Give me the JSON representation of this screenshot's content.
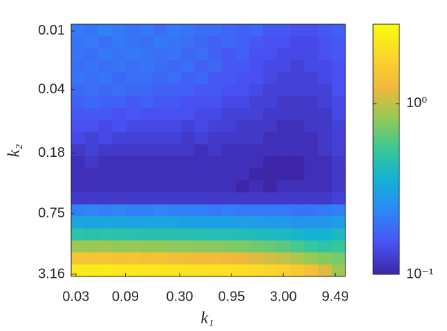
{
  "chart_data": {
    "type": "heatmap",
    "xlabel": "k₁",
    "ylabel": "k₂",
    "xscale": "log",
    "yscale": "log",
    "colorscale": "log",
    "colormap": "parula",
    "xlim": [
      0.027,
      11.9
    ],
    "ylim": [
      0.0085,
      3.32
    ],
    "xticks": [
      0.03,
      0.09,
      {
        "value": 0.3,
        "label": "0.30"
      },
      0.95,
      {
        "value": 3,
        "label": "3.00"
      },
      9.49
    ],
    "yticks": [
      0.01,
      0.04,
      0.18,
      0.75,
      3.16
    ],
    "clim": [
      0.1,
      2.92
    ],
    "cticks": [
      {
        "value": 0.1,
        "label": "10⁻¹"
      },
      {
        "value": 1,
        "label": "10⁰"
      }
    ],
    "z": [
      [
        0.21,
        0.2,
        0.22,
        0.21,
        0.2,
        0.21,
        0.19,
        0.21,
        0.2,
        0.19,
        0.19,
        0.18,
        0.17,
        0.18,
        0.16,
        0.16,
        0.15,
        0.15,
        0.16,
        0.17
      ],
      [
        0.2,
        0.21,
        0.19,
        0.21,
        0.2,
        0.19,
        0.21,
        0.2,
        0.19,
        0.18,
        0.17,
        0.18,
        0.17,
        0.16,
        0.15,
        0.15,
        0.14,
        0.14,
        0.15,
        0.16
      ],
      [
        0.2,
        0.19,
        0.21,
        0.2,
        0.21,
        0.2,
        0.19,
        0.2,
        0.18,
        0.19,
        0.17,
        0.16,
        0.17,
        0.15,
        0.15,
        0.14,
        0.14,
        0.14,
        0.15,
        0.16
      ],
      [
        0.19,
        0.2,
        0.19,
        0.2,
        0.19,
        0.2,
        0.19,
        0.18,
        0.19,
        0.17,
        0.18,
        0.16,
        0.16,
        0.15,
        0.14,
        0.14,
        0.13,
        0.14,
        0.14,
        0.15
      ],
      [
        0.2,
        0.19,
        0.2,
        0.18,
        0.19,
        0.19,
        0.18,
        0.19,
        0.17,
        0.18,
        0.16,
        0.16,
        0.15,
        0.15,
        0.14,
        0.13,
        0.13,
        0.13,
        0.14,
        0.15
      ],
      [
        0.18,
        0.19,
        0.18,
        0.19,
        0.18,
        0.18,
        0.17,
        0.17,
        0.17,
        0.16,
        0.16,
        0.15,
        0.15,
        0.14,
        0.13,
        0.13,
        0.13,
        0.13,
        0.13,
        0.15
      ],
      [
        0.17,
        0.18,
        0.17,
        0.17,
        0.16,
        0.17,
        0.16,
        0.16,
        0.15,
        0.15,
        0.15,
        0.14,
        0.14,
        0.13,
        0.13,
        0.12,
        0.12,
        0.12,
        0.13,
        0.14
      ],
      [
        0.16,
        0.16,
        0.16,
        0.15,
        0.16,
        0.15,
        0.15,
        0.15,
        0.15,
        0.14,
        0.14,
        0.13,
        0.13,
        0.13,
        0.12,
        0.12,
        0.12,
        0.12,
        0.12,
        0.14
      ],
      [
        0.15,
        0.15,
        0.14,
        0.15,
        0.14,
        0.14,
        0.14,
        0.14,
        0.13,
        0.14,
        0.13,
        0.13,
        0.12,
        0.12,
        0.12,
        0.11,
        0.11,
        0.12,
        0.12,
        0.13
      ],
      [
        0.14,
        0.13,
        0.14,
        0.13,
        0.13,
        0.13,
        0.13,
        0.13,
        0.12,
        0.13,
        0.12,
        0.12,
        0.12,
        0.12,
        0.11,
        0.11,
        0.11,
        0.11,
        0.12,
        0.13
      ],
      [
        0.12,
        0.13,
        0.12,
        0.12,
        0.12,
        0.12,
        0.12,
        0.12,
        0.12,
        0.11,
        0.12,
        0.11,
        0.11,
        0.11,
        0.11,
        0.11,
        0.11,
        0.11,
        0.12,
        0.13
      ],
      [
        0.11,
        0.12,
        0.11,
        0.11,
        0.11,
        0.11,
        0.11,
        0.11,
        0.11,
        0.11,
        0.11,
        0.11,
        0.11,
        0.11,
        0.1,
        0.1,
        0.1,
        0.11,
        0.11,
        0.12
      ],
      [
        0.11,
        0.11,
        0.11,
        0.11,
        0.11,
        0.11,
        0.11,
        0.11,
        0.11,
        0.11,
        0.11,
        0.11,
        0.11,
        0.1,
        0.1,
        0.1,
        0.1,
        0.11,
        0.11,
        0.12
      ],
      [
        0.11,
        0.11,
        0.11,
        0.11,
        0.11,
        0.11,
        0.11,
        0.11,
        0.11,
        0.11,
        0.11,
        0.11,
        0.1,
        0.11,
        0.1,
        0.11,
        0.11,
        0.11,
        0.11,
        0.12
      ],
      [
        0.12,
        0.12,
        0.12,
        0.12,
        0.12,
        0.12,
        0.12,
        0.12,
        0.12,
        0.12,
        0.12,
        0.12,
        0.12,
        0.12,
        0.12,
        0.12,
        0.12,
        0.12,
        0.12,
        0.13
      ],
      [
        0.22,
        0.23,
        0.22,
        0.23,
        0.22,
        0.22,
        0.23,
        0.22,
        0.22,
        0.22,
        0.21,
        0.22,
        0.21,
        0.21,
        0.21,
        0.21,
        0.2,
        0.2,
        0.21,
        0.22
      ],
      [
        0.32,
        0.31,
        0.32,
        0.31,
        0.31,
        0.31,
        0.31,
        0.31,
        0.3,
        0.3,
        0.3,
        0.3,
        0.29,
        0.29,
        0.28,
        0.28,
        0.27,
        0.27,
        0.27,
        0.29
      ],
      [
        0.48,
        0.47,
        0.48,
        0.47,
        0.47,
        0.46,
        0.46,
        0.46,
        0.45,
        0.45,
        0.44,
        0.44,
        0.43,
        0.42,
        0.41,
        0.4,
        0.38,
        0.36,
        0.37,
        0.4
      ],
      [
        0.85,
        0.83,
        0.85,
        0.82,
        0.83,
        0.81,
        0.82,
        0.8,
        0.79,
        0.78,
        0.77,
        0.75,
        0.73,
        0.7,
        0.67,
        0.63,
        0.58,
        0.52,
        0.49,
        0.53
      ],
      [
        1.5,
        1.47,
        1.5,
        1.44,
        1.47,
        1.4,
        1.44,
        1.37,
        1.35,
        1.33,
        1.3,
        1.26,
        1.21,
        1.15,
        1.08,
        1.01,
        0.92,
        0.83,
        0.76,
        0.72
      ],
      [
        2.4,
        2.36,
        2.4,
        2.33,
        2.36,
        2.3,
        2.33,
        2.26,
        2.22,
        2.19,
        2.15,
        2.12,
        2.05,
        1.98,
        1.87,
        1.73,
        1.59,
        1.38,
        1.13,
        0.85
      ]
    ]
  }
}
